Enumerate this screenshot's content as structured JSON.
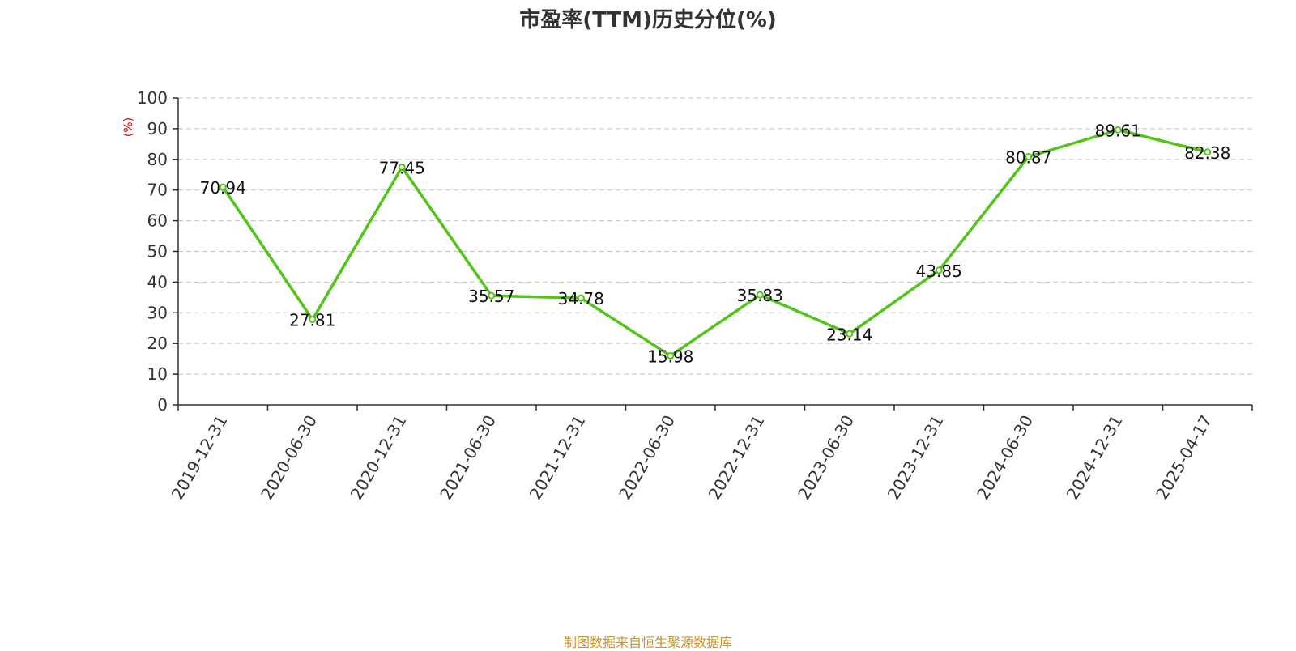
{
  "chart_data": {
    "type": "line",
    "title": "市盈率(TTM)历史分位(%)",
    "ylabel": "(%)",
    "xlabel": "",
    "ylim": [
      0,
      100
    ],
    "yticks": [
      0,
      10,
      20,
      30,
      40,
      50,
      60,
      70,
      80,
      90,
      100
    ],
    "grid": "horizontal dashed",
    "categories": [
      "2019-12-31",
      "2020-06-30",
      "2020-12-31",
      "2021-06-30",
      "2021-12-31",
      "2022-06-30",
      "2022-12-31",
      "2023-06-30",
      "2023-12-31",
      "2024-06-30",
      "2024-12-31",
      "2025-04-17"
    ],
    "series": [
      {
        "values": [
          70.94,
          27.81,
          77.45,
          35.57,
          34.78,
          15.98,
          35.83,
          23.14,
          43.85,
          80.87,
          89.61,
          82.38
        ],
        "color": "#52c41a"
      }
    ]
  },
  "source_note": "制图数据来自恒生聚源数据库"
}
